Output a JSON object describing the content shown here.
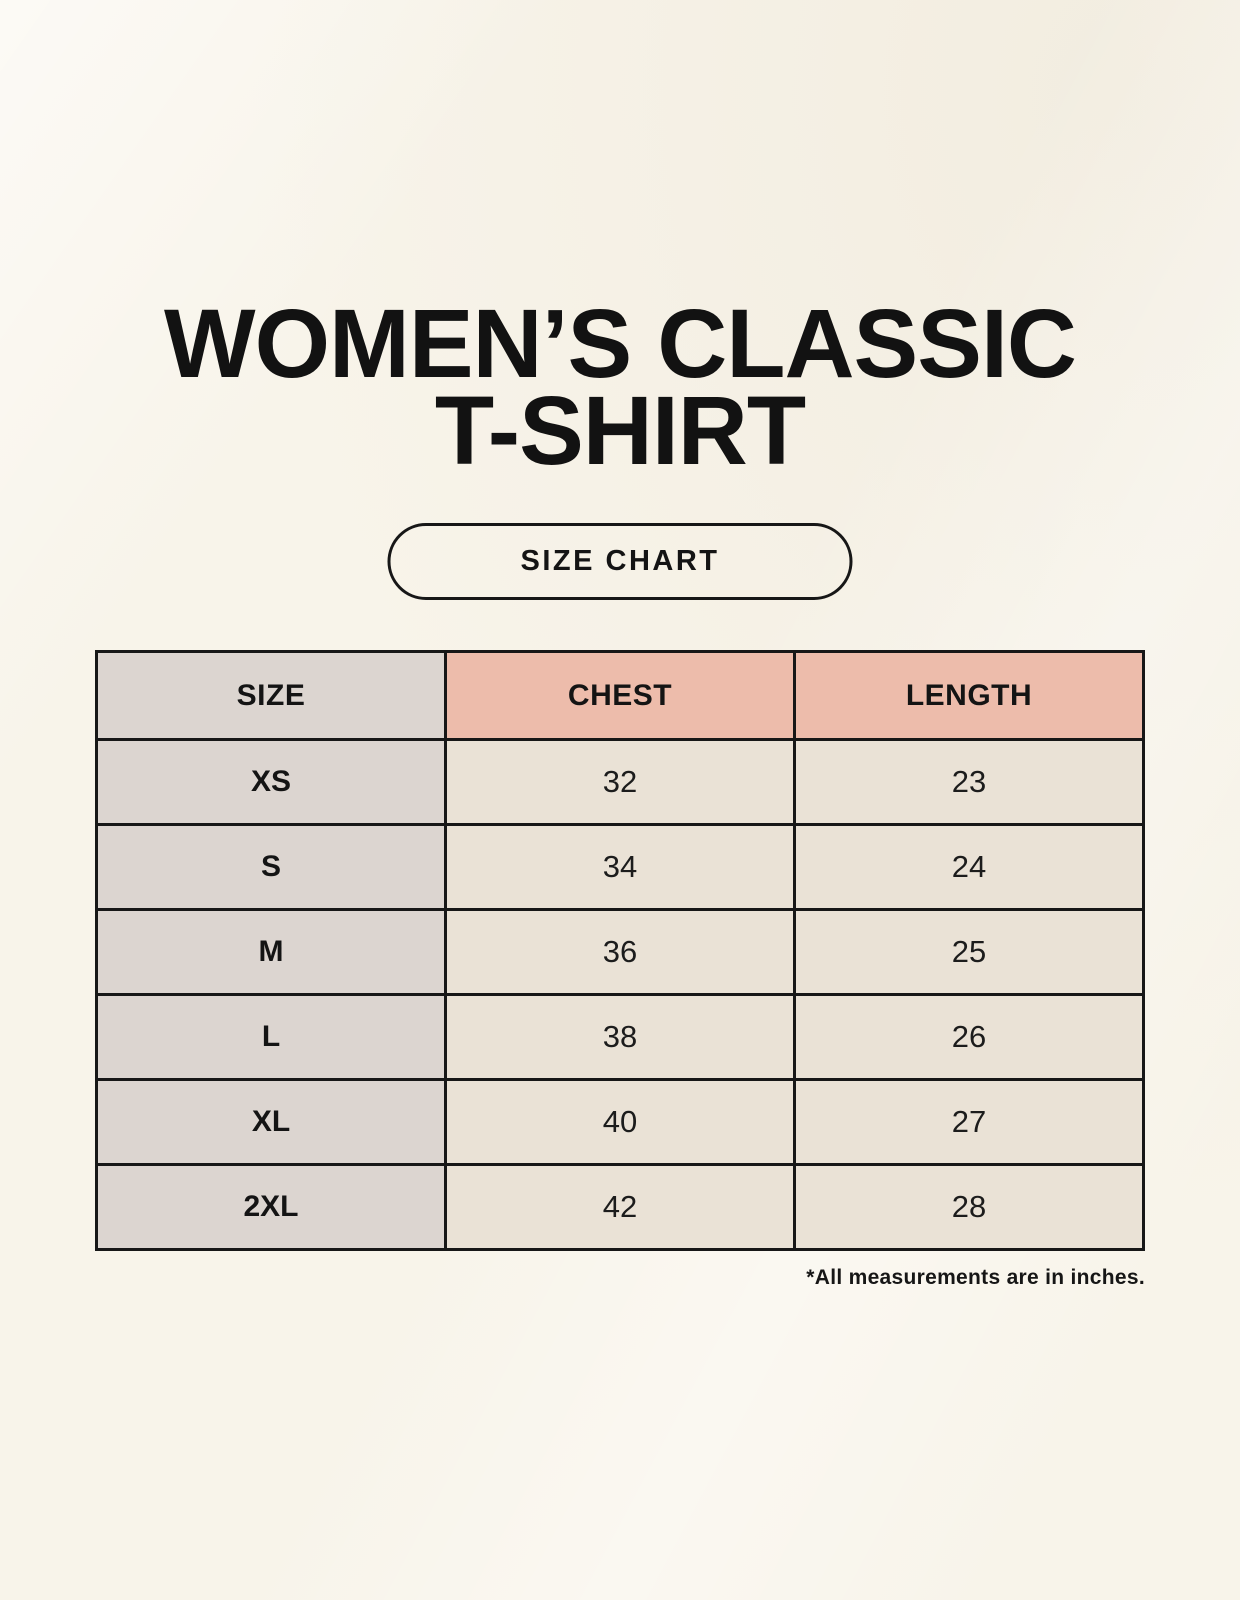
{
  "page": {
    "title_line1": "WOMEN’S CLASSIC",
    "title_line2": "T-SHIRT",
    "button_label": "SIZE CHART"
  },
  "colors": {
    "background": "#f8f4ea",
    "size_column_bg": "#dcd5d0",
    "measure_header_bg": "#edbcab",
    "data_cell_bg": "#eae2d6",
    "table_border": "#171717",
    "text": "#141414"
  },
  "chart_data": {
    "type": "table",
    "title": "WOMEN’S CLASSIC T-SHIRT",
    "subtitle": "SIZE CHART",
    "columns": [
      "SIZE",
      "CHEST",
      "LENGTH"
    ],
    "rows": [
      [
        "XS",
        "32",
        "23"
      ],
      [
        "S",
        "34",
        "24"
      ],
      [
        "M",
        "36",
        "25"
      ],
      [
        "L",
        "38",
        "26"
      ],
      [
        "XL",
        "40",
        "27"
      ],
      [
        "2XL",
        "42",
        "28"
      ]
    ],
    "units_note": "*All measurements are in inches."
  }
}
